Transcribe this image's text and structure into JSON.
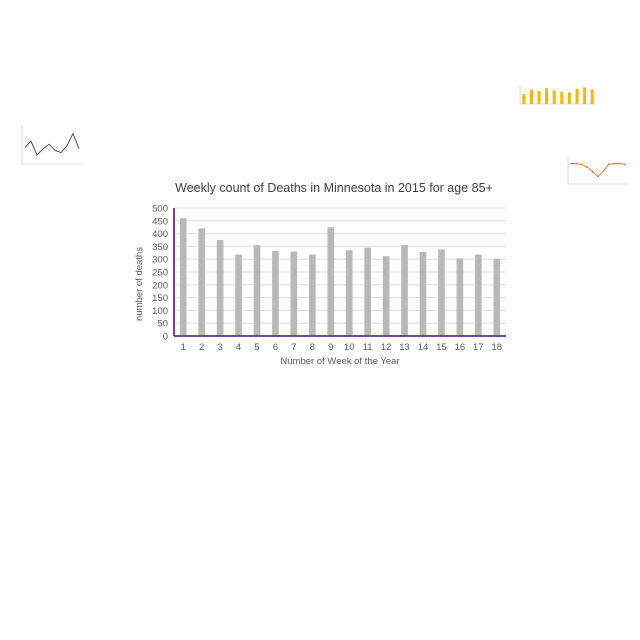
{
  "chart_data": [
    {
      "type": "bar",
      "title": "Weekly count of Deaths in Minnesota in 2015 for age 85+",
      "xlabel": "Number of Week of the Year",
      "ylabel": "number of deaths",
      "categories": [
        "1",
        "2",
        "3",
        "4",
        "5",
        "6",
        "7",
        "8",
        "9",
        "10",
        "11",
        "12",
        "13",
        "14",
        "15",
        "16",
        "17",
        "18"
      ],
      "values": [
        460,
        420,
        375,
        318,
        355,
        333,
        330,
        318,
        425,
        335,
        345,
        312,
        355,
        328,
        338,
        303,
        318,
        302
      ],
      "ylim": [
        0,
        500
      ],
      "yticks": [
        "0",
        "50",
        "100",
        "150",
        "200",
        "250",
        "300",
        "350",
        "400",
        "450",
        "500"
      ],
      "grid": true,
      "colors": {
        "bar": "#b8b8b8",
        "axis": "#6a2c91",
        "grid": "#d9d9d9",
        "text": "#595959"
      }
    },
    {
      "type": "line",
      "values": [
        62,
        70,
        52,
        60,
        66,
        58,
        55,
        64,
        80,
        60
      ],
      "colors": {
        "line": "#404040"
      }
    },
    {
      "type": "bar",
      "values": [
        14,
        20,
        18,
        22,
        19,
        17,
        16,
        21,
        23,
        20
      ],
      "colors": {
        "bar": "#f5b800"
      }
    },
    {
      "type": "line",
      "values": [
        42,
        42,
        41,
        38,
        33,
        28,
        34,
        41,
        42,
        42,
        41
      ],
      "colors": {
        "line": "#e87722"
      }
    }
  ]
}
